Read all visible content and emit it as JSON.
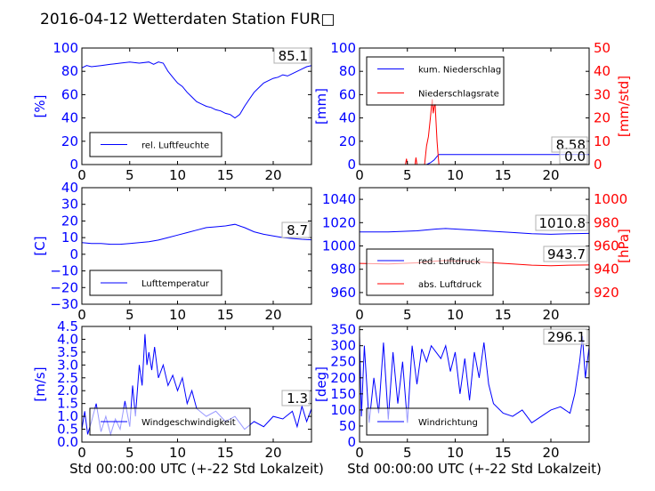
{
  "figure": {
    "title": "2016-04-12 Wetterdaten Station FUR□"
  },
  "colors": {
    "primary": "#0000ff",
    "secondary": "#ff0000",
    "frame": "#000000"
  },
  "chart_data": [
    {
      "id": "humidity",
      "type": "line",
      "ylabel": "[%]",
      "ylim": [
        0,
        100
      ],
      "yticks": [
        "0",
        "20",
        "40",
        "60",
        "80",
        "100"
      ],
      "xlim": [
        0,
        24
      ],
      "xticks": [
        "0",
        "5",
        "10",
        "15",
        "20"
      ],
      "annotation": "85.1",
      "legend": {
        "placement": "lower-left",
        "entries": [
          "rel. Luftfeuchte"
        ]
      },
      "series": [
        {
          "name": "rel. Luftfeuchte",
          "color": "#0000ff",
          "axis": "left",
          "x": [
            0,
            0.5,
            1,
            2,
            3,
            4,
            5,
            6,
            7,
            7.5,
            8,
            8.5,
            9,
            9.5,
            10,
            10.5,
            11,
            11.5,
            12,
            12.5,
            13,
            13.5,
            14,
            14.5,
            15,
            15.5,
            16,
            16.5,
            17,
            17.5,
            18,
            18.5,
            19,
            19.5,
            20,
            20.5,
            21,
            21.5,
            22,
            22.5,
            23,
            23.5,
            24
          ],
          "y": [
            83,
            85,
            84,
            85,
            86,
            87,
            88,
            87,
            88,
            86,
            88,
            87,
            80,
            75,
            70,
            67,
            62,
            58,
            54,
            52,
            50,
            49,
            47,
            46,
            44,
            43,
            40,
            43,
            50,
            56,
            62,
            66,
            70,
            72,
            74,
            75,
            77,
            76,
            78,
            80,
            82,
            84,
            85
          ]
        }
      ]
    },
    {
      "id": "precipitation",
      "type": "line",
      "ylabel": "[mm]",
      "ylabel_right": "[mm/std]",
      "ylim": [
        0,
        100
      ],
      "ylim_right": [
        0,
        50
      ],
      "yticks": [
        "0",
        "20",
        "40",
        "60",
        "80",
        "100"
      ],
      "yticks_right": [
        "0",
        "10",
        "20",
        "30",
        "40",
        "50"
      ],
      "xlim": [
        0,
        24
      ],
      "xticks": [
        "0",
        "5",
        "10",
        "15",
        "20"
      ],
      "annotations": [
        "8.58",
        "0.0"
      ],
      "legend": {
        "placement": "upper-left",
        "entries": [
          "kum. Niederschlag",
          "Niederschlagsrate"
        ]
      },
      "series": [
        {
          "name": "kum. Niederschlag",
          "color": "#0000ff",
          "axis": "left",
          "x": [
            0,
            7.0,
            7.4,
            7.8,
            8.1,
            8.3,
            24
          ],
          "y": [
            0,
            0,
            1.5,
            4,
            7,
            8.58,
            8.58
          ]
        },
        {
          "name": "Niederschlagsrate",
          "color": "#ff0000",
          "axis": "right",
          "x": [
            0,
            4.8,
            4.9,
            5.0,
            5.8,
            5.9,
            6.0,
            6.8,
            6.9,
            7.0,
            7.2,
            7.4,
            7.5,
            7.6,
            7.7,
            7.8,
            7.9,
            8.0,
            8.1,
            8.2,
            8.3,
            24
          ],
          "y": [
            0,
            0,
            2.5,
            0,
            0,
            3,
            0,
            0,
            4,
            8,
            12,
            20,
            24,
            28,
            22,
            25,
            26,
            18,
            10,
            5,
            0,
            0
          ]
        }
      ]
    },
    {
      "id": "temperature",
      "type": "line",
      "ylabel": "[C]",
      "ylim": [
        -30,
        40
      ],
      "yticks": [
        "−30",
        "−20",
        "−10",
        "0",
        "10",
        "20",
        "30",
        "40"
      ],
      "xlim": [
        0,
        24
      ],
      "xticks": [
        "0",
        "5",
        "10",
        "15",
        "20"
      ],
      "annotation": "8.7",
      "legend": {
        "placement": "lower-left",
        "entries": [
          "Lufttemperatur"
        ]
      },
      "series": [
        {
          "name": "Lufttemperatur",
          "color": "#0000ff",
          "axis": "left",
          "x": [
            0,
            1,
            2,
            3,
            4,
            5,
            6,
            7,
            8,
            9,
            10,
            11,
            12,
            13,
            14,
            15,
            16,
            17,
            18,
            19,
            20,
            21,
            22,
            23,
            24
          ],
          "y": [
            7,
            6.5,
            6.5,
            6,
            6,
            6.5,
            7,
            7.5,
            8.5,
            10,
            11.5,
            13,
            14.5,
            16,
            16.5,
            17,
            18,
            16,
            13.5,
            12,
            11,
            10,
            9.5,
            9,
            8.7
          ]
        }
      ]
    },
    {
      "id": "pressure",
      "type": "line",
      "ylabel_right": "[hPa]",
      "ylim": [
        950,
        1050
      ],
      "ylim_right": [
        910,
        1010
      ],
      "yticks": [
        "960",
        "980",
        "1000",
        "1020",
        "1040"
      ],
      "yticks_right": [
        "920",
        "940",
        "960",
        "980",
        "1000"
      ],
      "xlim": [
        0,
        24
      ],
      "xticks": [
        "0",
        "5",
        "10",
        "15",
        "20"
      ],
      "annotations": [
        "1010.8",
        "943.7"
      ],
      "legend": {
        "placement": "lower-left",
        "entries": [
          "red. Luftdruck",
          "abs. Luftdruck"
        ]
      },
      "series": [
        {
          "name": "red. Luftdruck",
          "color": "#0000ff",
          "axis": "left",
          "x": [
            0,
            3,
            6,
            8,
            9,
            10,
            12,
            14,
            16,
            18,
            20,
            22,
            24
          ],
          "y": [
            1012,
            1012,
            1013,
            1014.5,
            1015,
            1014.5,
            1013.5,
            1012.5,
            1011.5,
            1010.5,
            1010,
            1010.5,
            1010.8
          ]
        },
        {
          "name": "abs. Luftdruck",
          "color": "#ff0000",
          "axis": "right",
          "x": [
            0,
            3,
            6,
            8,
            9,
            10,
            12,
            14,
            16,
            18,
            20,
            22,
            24
          ],
          "y": [
            945,
            944.5,
            945.5,
            947,
            947.5,
            947,
            946.5,
            945.5,
            944.5,
            943.5,
            943,
            943.5,
            943.7
          ]
        }
      ]
    },
    {
      "id": "windspeed",
      "type": "line",
      "ylabel": "[m/s]",
      "xlabel": "Std 00:00:00 UTC (+-22 Std Lokalzeit)",
      "ylim": [
        0,
        4.5
      ],
      "yticks": [
        "0.0",
        "0.5",
        "1.0",
        "1.5",
        "2.0",
        "2.5",
        "3.0",
        "3.5",
        "4.0",
        "4.5"
      ],
      "xlim": [
        0,
        24
      ],
      "xticks": [
        "0",
        "5",
        "10",
        "15",
        "20"
      ],
      "annotation": "1.3",
      "legend": {
        "placement": "lower-left",
        "entries": [
          "Windgeschwindigkeit"
        ]
      },
      "series": [
        {
          "name": "Windgeschwindigkeit",
          "color": "#0000ff",
          "axis": "left",
          "x": [
            0,
            0.3,
            0.6,
            1,
            1.5,
            2,
            2.5,
            3,
            3.5,
            4,
            4.5,
            5,
            5.3,
            5.6,
            6,
            6.3,
            6.6,
            6.8,
            7,
            7.3,
            7.6,
            8,
            8.5,
            9,
            9.5,
            10,
            10.5,
            11,
            11.5,
            12,
            13,
            14,
            15,
            16,
            17,
            18,
            19,
            20,
            21,
            22,
            22.5,
            23,
            23.5,
            24
          ],
          "y": [
            0.5,
            1.2,
            0.3,
            0.8,
            1.5,
            0.4,
            1.0,
            0.3,
            0.9,
            0.5,
            1.6,
            0.6,
            2.2,
            1.0,
            3.0,
            2.2,
            4.2,
            3.0,
            3.5,
            2.8,
            3.7,
            2.5,
            3.0,
            2.2,
            2.6,
            2.0,
            2.5,
            1.5,
            2.0,
            1.3,
            1.0,
            1.2,
            0.8,
            1.0,
            0.5,
            0.8,
            0.6,
            1.0,
            0.9,
            1.2,
            0.6,
            1.4,
            0.8,
            1.3
          ]
        }
      ]
    },
    {
      "id": "winddirection",
      "type": "line",
      "ylabel": "[deg]",
      "xlabel": "Std 00:00:00 UTC (+-22 Std Lokalzeit)",
      "ylim": [
        0,
        360
      ],
      "yticks": [
        "0",
        "50",
        "100",
        "150",
        "200",
        "250",
        "300",
        "350"
      ],
      "xlim": [
        0,
        24
      ],
      "xticks": [
        "0",
        "5",
        "10",
        "15",
        "20"
      ],
      "annotation": "296.1",
      "legend": {
        "placement": "lower-left",
        "entries": [
          "Windrichtung"
        ]
      },
      "series": [
        {
          "name": "Windrichtung",
          "color": "#0000ff",
          "axis": "left",
          "x": [
            0,
            0.2,
            0.5,
            1,
            1.5,
            2,
            2.5,
            3,
            3.5,
            4,
            4.5,
            5,
            5.5,
            6,
            6.5,
            7,
            7.5,
            8,
            8.5,
            9,
            9.5,
            10,
            10.5,
            11,
            11.5,
            12,
            12.5,
            13,
            13.5,
            14,
            15,
            16,
            17,
            18,
            19,
            20,
            21,
            22,
            22.5,
            23,
            23.3,
            23.6,
            24
          ],
          "y": [
            330,
            80,
            300,
            60,
            200,
            90,
            310,
            70,
            280,
            120,
            250,
            60,
            300,
            180,
            290,
            250,
            300,
            280,
            260,
            300,
            220,
            280,
            150,
            260,
            130,
            280,
            200,
            310,
            180,
            120,
            90,
            80,
            100,
            60,
            80,
            100,
            110,
            90,
            150,
            250,
            330,
            200,
            296
          ]
        }
      ]
    }
  ]
}
